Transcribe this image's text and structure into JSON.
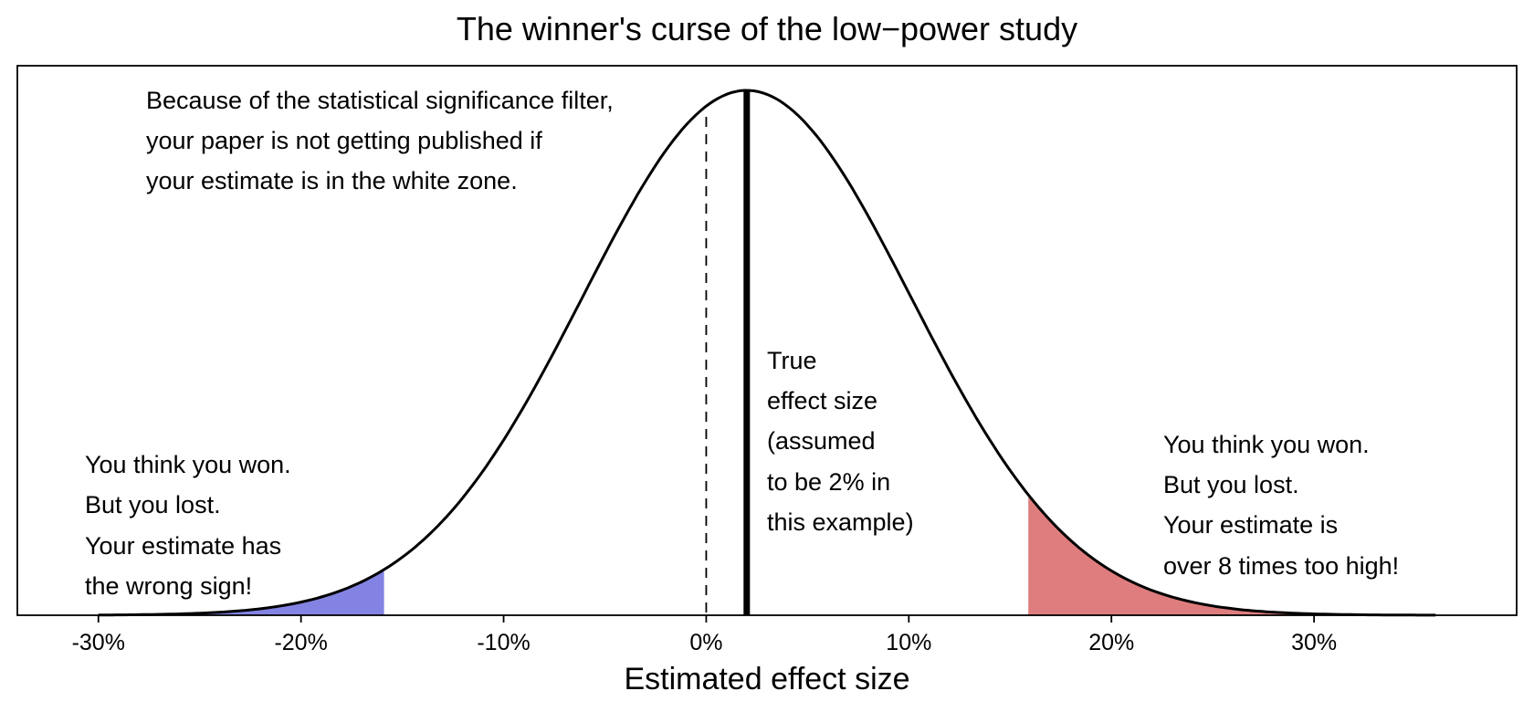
{
  "chart_data": {
    "type": "area",
    "title": "The winner's curse of the low−power study",
    "xlabel": "Estimated effect size",
    "ylabel": "",
    "distribution": {
      "kind": "normal",
      "mean": 2,
      "sd": 8.1
    },
    "xlim": [
      -34,
      40
    ],
    "xticks": [
      -30,
      -20,
      -10,
      0,
      10,
      20,
      30
    ],
    "xtick_labels": [
      "-30%",
      "-20%",
      "-10%",
      "0%",
      "10%",
      "20%",
      "30%"
    ],
    "curve_range": [
      -30,
      36
    ],
    "true_effect": 2,
    "zero_line": 0,
    "shaded_regions": [
      {
        "name": "wrong-sign",
        "from": -30,
        "to": -15.9,
        "color": "#8383e3"
      },
      {
        "name": "too-high",
        "from": 15.9,
        "to": 36,
        "color": "#df7d7e"
      }
    ],
    "grid": false,
    "annotations": {
      "filter": [
        "Because of the statistical significance filter,",
        "your paper is not getting published if",
        "your estimate is in the white zone."
      ],
      "true_effect": [
        "True",
        "effect size",
        "(assumed",
        "to be 2% in",
        "this example)"
      ],
      "left": [
        "You think you won.",
        "But you lost.",
        "Your estimate has",
        "the wrong sign!"
      ],
      "right": [
        "You think you won.",
        "But you lost.",
        "Your estimate is",
        "over 8 times too high!"
      ]
    }
  }
}
